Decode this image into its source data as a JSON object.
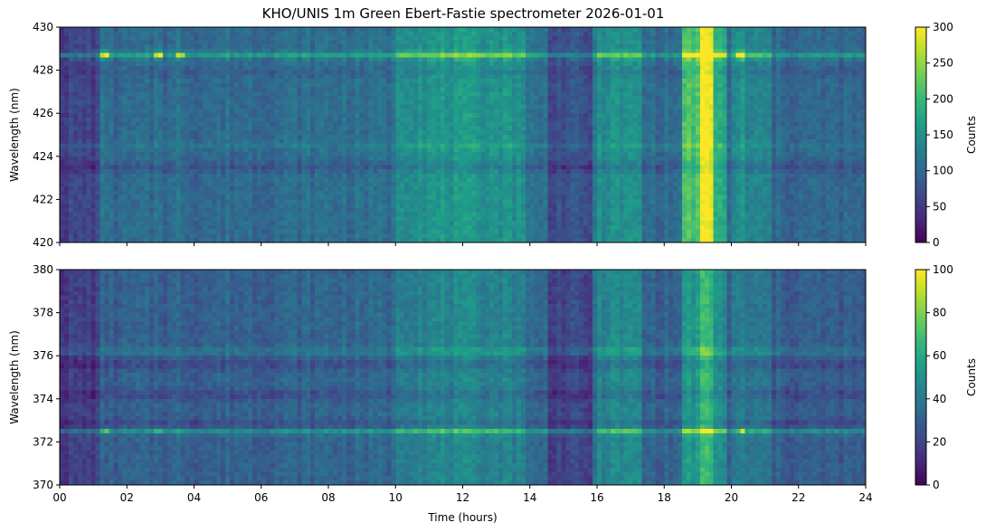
{
  "title": "KHO/UNIS 1m Green Ebert-Fastie spectrometer 2026-01-01",
  "chart_data": [
    {
      "type": "heatmap",
      "panel": "top",
      "ylabel": "Wavelength (nm)",
      "xlabel": "",
      "xlim": [
        0,
        24
      ],
      "ylim": [
        420,
        430
      ],
      "xticks": [
        0,
        2,
        4,
        6,
        8,
        10,
        12,
        14,
        16,
        18,
        20,
        22,
        24
      ],
      "xtick_labels": [
        "00",
        "02",
        "04",
        "06",
        "08",
        "10",
        "12",
        "14",
        "16",
        "18",
        "20",
        "22",
        "24"
      ],
      "yticks": [
        420,
        422,
        424,
        426,
        428,
        430
      ],
      "colormap": "viridis",
      "colorbar": {
        "label": "Counts",
        "range": [
          0,
          300
        ],
        "ticks": [
          0,
          50,
          100,
          150,
          200,
          250,
          300
        ]
      },
      "background_level": 95,
      "emission_lines": [
        {
          "wavelength": 428.7,
          "intensity": 60
        },
        {
          "wavelength": 424.5,
          "intensity": 15
        }
      ],
      "dark_bands": [
        {
          "wavelength": 423.5,
          "depth": 25
        },
        {
          "wavelength": 427.9,
          "depth": 15
        }
      ],
      "bright_periods": [
        {
          "start": 10.0,
          "end": 13.8,
          "boost": 45
        },
        {
          "start": 16.0,
          "end": 17.4,
          "boost": 40
        },
        {
          "start": 18.6,
          "end": 19.1,
          "boost": 110
        },
        {
          "start": 19.1,
          "end": 19.5,
          "boost": 190
        },
        {
          "start": 19.5,
          "end": 19.8,
          "boost": 80
        },
        {
          "start": 20.0,
          "end": 21.2,
          "boost": 30
        }
      ],
      "dark_periods": [
        {
          "start": 0.0,
          "end": 1.2,
          "cut": 35
        },
        {
          "start": 14.5,
          "end": 15.9,
          "cut": 35
        }
      ],
      "bursts": [
        {
          "time": 1.35,
          "intensity": 220
        },
        {
          "time": 2.95,
          "intensity": 200
        },
        {
          "time": 3.6,
          "intensity": 150
        },
        {
          "time": 20.3,
          "intensity": 230
        }
      ]
    },
    {
      "type": "heatmap",
      "panel": "bottom",
      "ylabel": "Wavelength (nm)",
      "xlabel": "Time (hours)",
      "xlim": [
        0,
        24
      ],
      "ylim": [
        370,
        380
      ],
      "xticks": [
        0,
        2,
        4,
        6,
        8,
        10,
        12,
        14,
        16,
        18,
        20,
        22,
        24
      ],
      "xtick_labels": [
        "00",
        "02",
        "04",
        "06",
        "08",
        "10",
        "12",
        "14",
        "16",
        "18",
        "20",
        "22",
        "24"
      ],
      "yticks": [
        370,
        372,
        374,
        376,
        378,
        380
      ],
      "colormap": "viridis",
      "colorbar": {
        "label": "Counts",
        "range": [
          0,
          100
        ],
        "ticks": [
          0,
          20,
          40,
          60,
          80,
          100
        ]
      },
      "background_level": 28,
      "emission_lines": [
        {
          "wavelength": 372.5,
          "intensity": 20
        },
        {
          "wavelength": 376.2,
          "intensity": 10
        }
      ],
      "dark_bands": [
        {
          "wavelength": 372.8,
          "depth": 8
        },
        {
          "wavelength": 374.2,
          "depth": 8
        },
        {
          "wavelength": 375.6,
          "depth": 8
        }
      ],
      "bright_periods": [
        {
          "start": 10.0,
          "end": 13.8,
          "boost": 12
        },
        {
          "start": 16.0,
          "end": 17.4,
          "boost": 14
        },
        {
          "start": 18.6,
          "end": 19.1,
          "boost": 22
        },
        {
          "start": 19.1,
          "end": 19.5,
          "boost": 35
        },
        {
          "start": 19.5,
          "end": 19.8,
          "boost": 18
        },
        {
          "start": 20.0,
          "end": 21.2,
          "boost": 8
        }
      ],
      "dark_periods": [
        {
          "start": 0.0,
          "end": 1.2,
          "cut": 10
        },
        {
          "start": 14.5,
          "end": 15.9,
          "cut": 12
        }
      ],
      "bursts": [
        {
          "time": 1.35,
          "intensity": 30
        },
        {
          "time": 2.95,
          "intensity": 25
        },
        {
          "time": 3.6,
          "intensity": 18
        },
        {
          "time": 20.3,
          "intensity": 30
        }
      ]
    }
  ]
}
